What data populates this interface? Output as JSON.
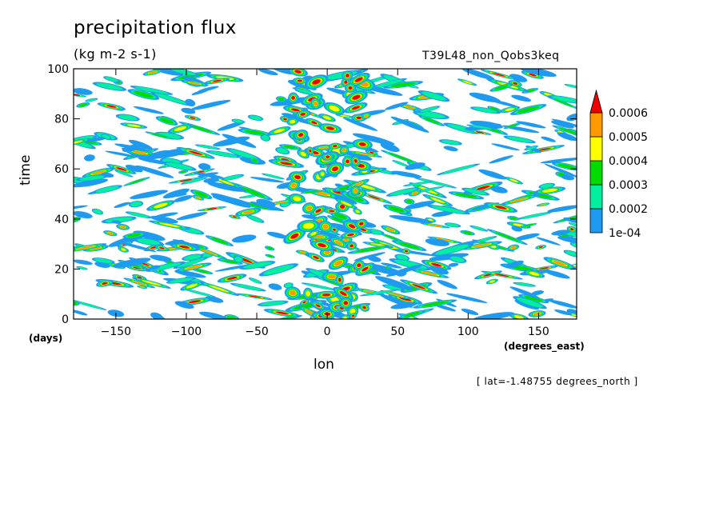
{
  "chart_data": {
    "type": "heatmap",
    "title": "precipitation flux",
    "units": "(kg m-2 s-1)",
    "run_label": "T39L48_non_Qobs3keq",
    "xlabel": "lon",
    "ylabel": "time",
    "x_units": "(degrees_east)",
    "y_units": "(days)",
    "annotation": "[ lat=-1.48755 degrees_north ]",
    "xlim": [
      -180,
      177
    ],
    "ylim": [
      0,
      100
    ],
    "x_ticks": [
      -150,
      -100,
      -50,
      0,
      50,
      100,
      150
    ],
    "y_ticks": [
      0,
      20,
      40,
      60,
      80,
      100
    ],
    "grid": false,
    "legend_position": "right",
    "colorbar": {
      "levels": [
        "1e-04",
        "0.0002",
        "0.0003",
        "0.0004",
        "0.0005",
        "0.0006"
      ],
      "colors": [
        "#1e9bf0",
        "#00f0a0",
        "#00dc00",
        "#ffff00",
        "#ff9a00",
        "#ee0000"
      ],
      "extend": "max"
    }
  }
}
